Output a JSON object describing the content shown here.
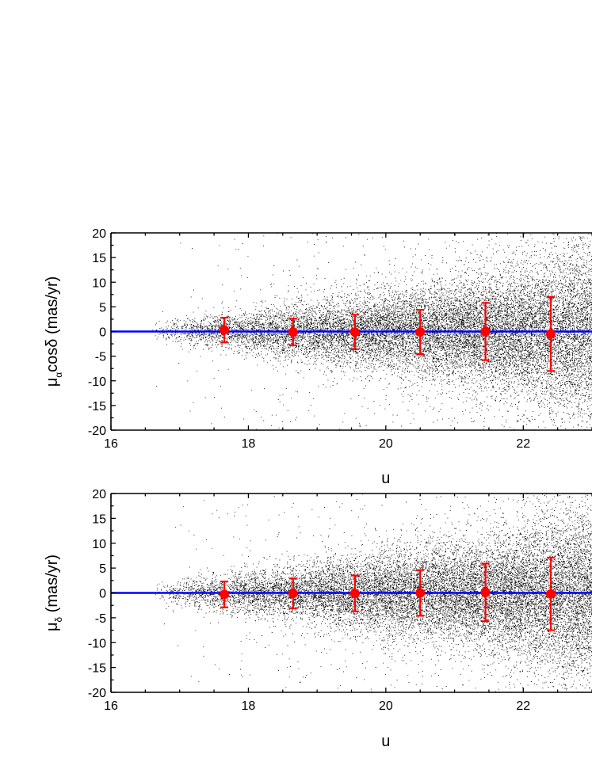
{
  "chart_data": [
    {
      "type": "scatter",
      "panel": "top",
      "xlabel": "u",
      "ylabel": {
        "base": "μ",
        "sub": "α",
        "rest": "cosδ (mas/yr)"
      },
      "xlim": [
        16,
        23
      ],
      "ylim": [
        -20,
        20
      ],
      "x_ticks": [
        16,
        18,
        20,
        22
      ],
      "y_ticks": [
        -20,
        -15,
        -10,
        -5,
        0,
        5,
        10,
        15,
        20
      ],
      "grid": false,
      "reference_line": {
        "y": 0,
        "color": "#0000ff"
      },
      "scatter_color": "#000000",
      "errorbar_color": "#ff0000",
      "binned_means": [
        {
          "x": 17.65,
          "y": 0.3,
          "err": 2.5
        },
        {
          "x": 18.65,
          "y": -0.1,
          "err": 2.7
        },
        {
          "x": 19.55,
          "y": -0.1,
          "err": 3.5
        },
        {
          "x": 20.5,
          "y": -0.1,
          "err": 4.5
        },
        {
          "x": 21.45,
          "y": 0.0,
          "err": 5.8
        },
        {
          "x": 22.4,
          "y": -0.5,
          "err": 7.5
        }
      ]
    },
    {
      "type": "scatter",
      "panel": "bottom",
      "xlabel": "u",
      "ylabel": {
        "base": "μ",
        "sub": "δ",
        "rest": " (mas/yr)"
      },
      "xlim": [
        16,
        23
      ],
      "ylim": [
        -20,
        20
      ],
      "x_ticks": [
        16,
        18,
        20,
        22
      ],
      "y_ticks": [
        -20,
        -15,
        -10,
        -5,
        0,
        5,
        10,
        15,
        20
      ],
      "grid": false,
      "reference_line": {
        "y": 0,
        "color": "#0000ff"
      },
      "scatter_color": "#000000",
      "errorbar_color": "#ff0000",
      "binned_means": [
        {
          "x": 17.65,
          "y": -0.3,
          "err": 2.6
        },
        {
          "x": 18.65,
          "y": -0.1,
          "err": 3.0
        },
        {
          "x": 19.55,
          "y": -0.1,
          "err": 3.6
        },
        {
          "x": 20.5,
          "y": 0.0,
          "err": 4.6
        },
        {
          "x": 21.45,
          "y": 0.1,
          "err": 5.8
        },
        {
          "x": 22.4,
          "y": -0.2,
          "err": 7.3
        }
      ]
    }
  ]
}
